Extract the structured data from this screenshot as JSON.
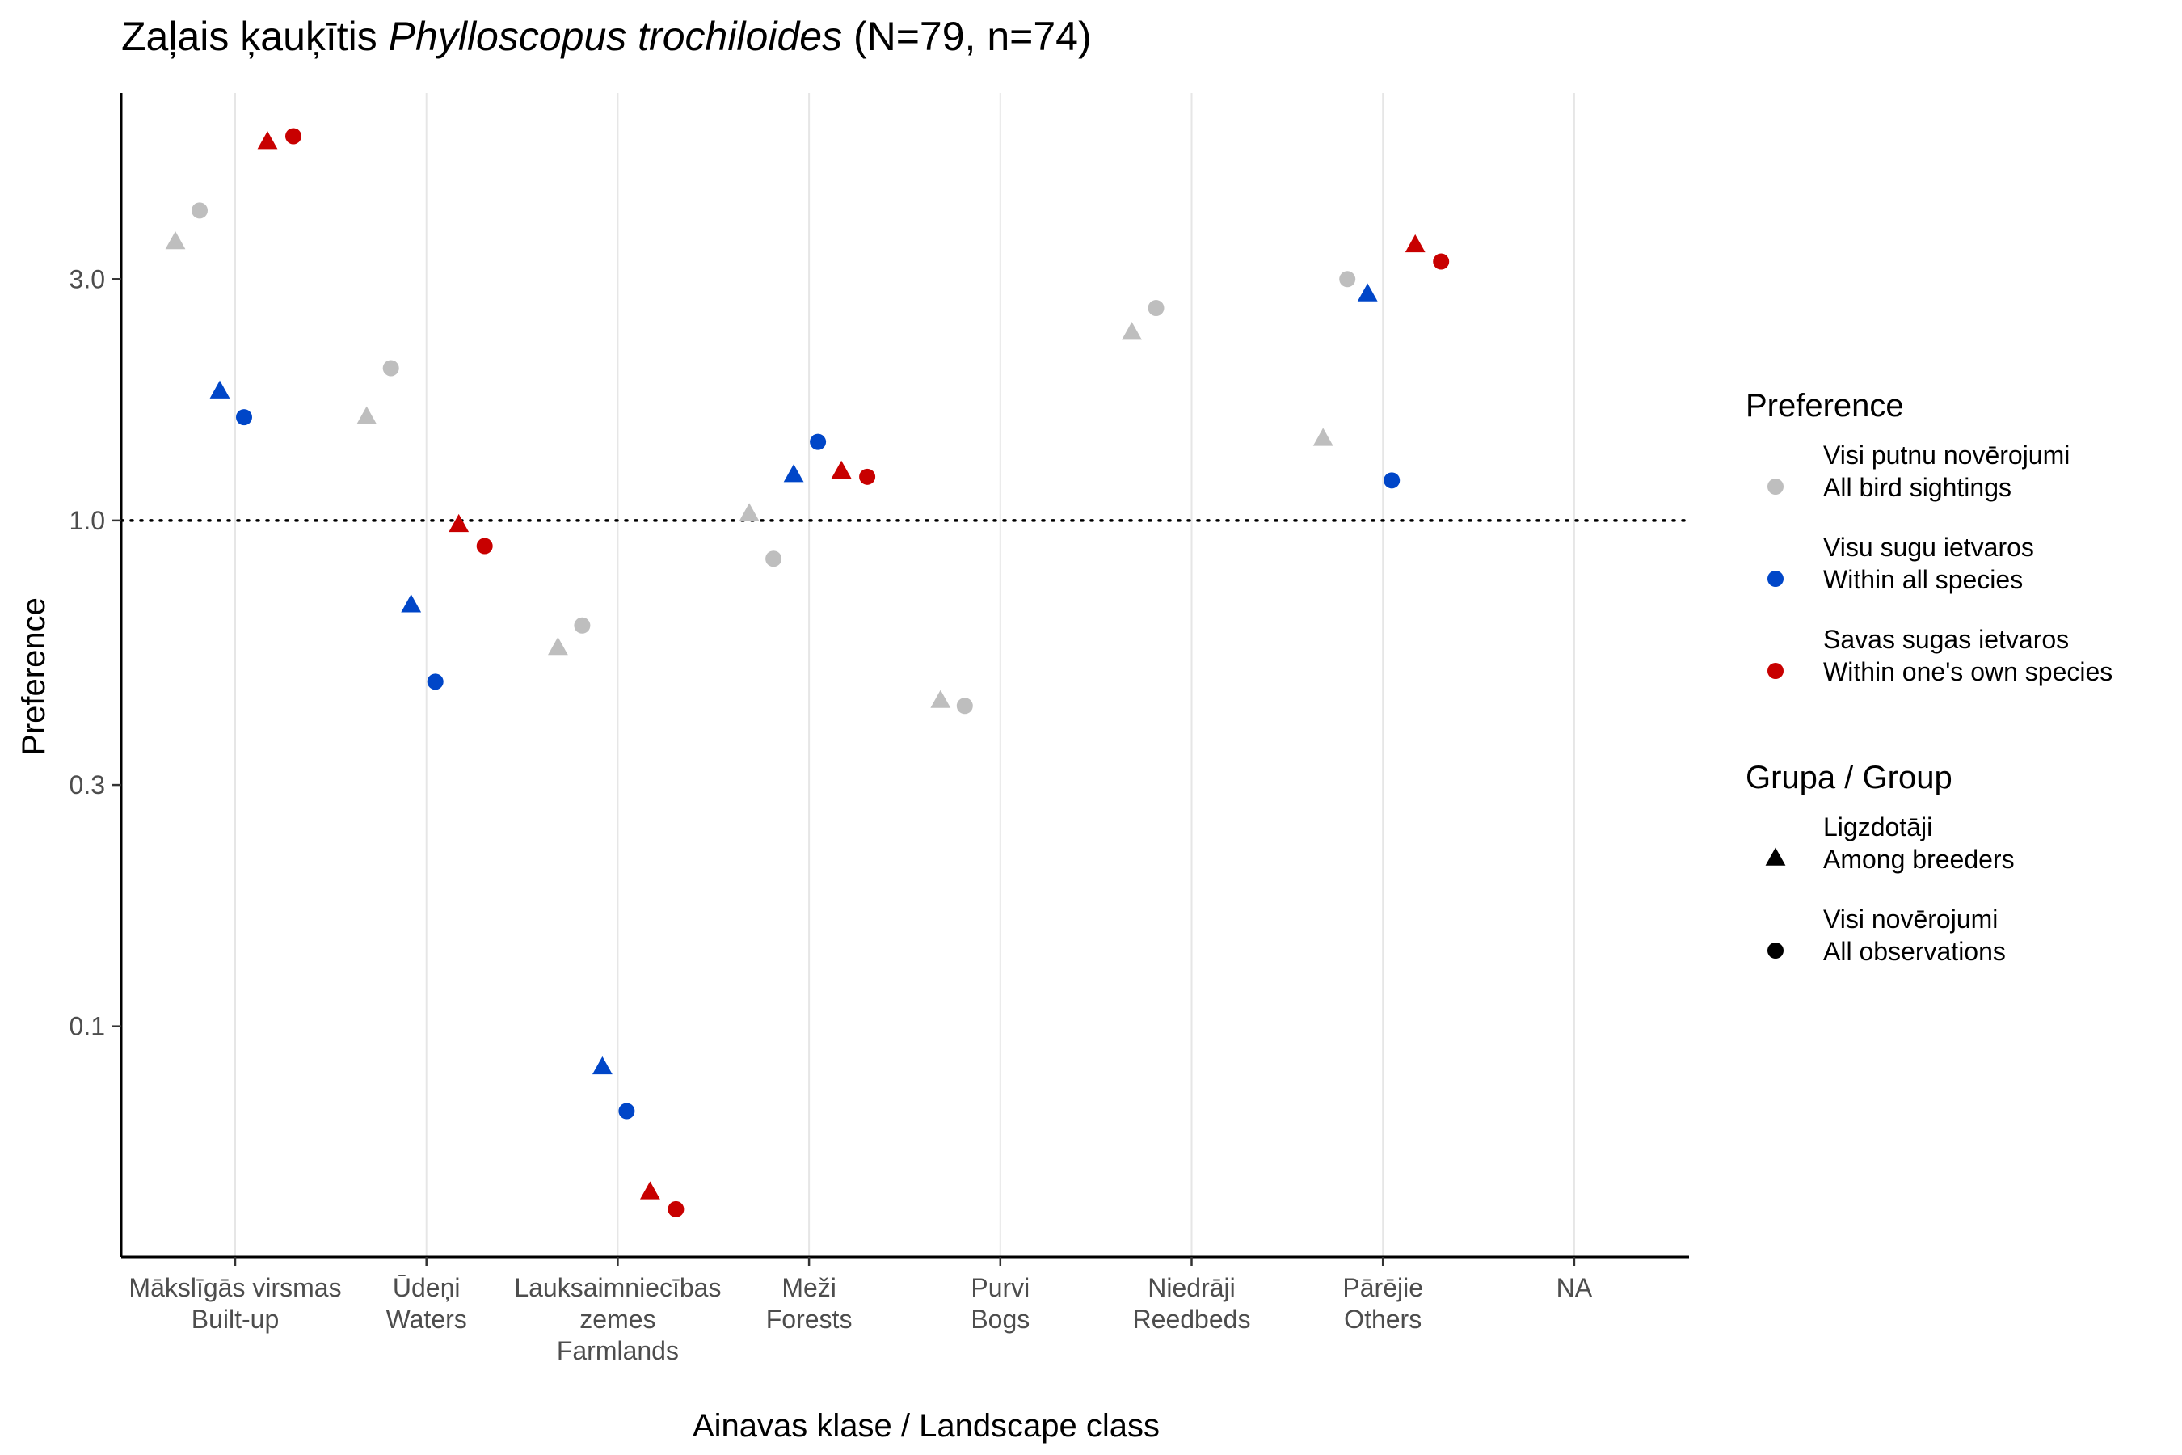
{
  "chart_data": {
    "type": "scatter",
    "title": {
      "prefix": "Zaļais ķauķītis ",
      "italic": "Phylloscopus trochiloides",
      "suffix": " (N=79, n=74)"
    },
    "xlabel": "Ainavas klase / Landscape class",
    "ylabel": "Preference",
    "y_scale": "log",
    "ylim": [
      0.035,
      7.0
    ],
    "y_ticks": [
      {
        "value": 0.1,
        "label": "0.1"
      },
      {
        "value": 0.3,
        "label": "0.3"
      },
      {
        "value": 1.0,
        "label": "1.0"
      },
      {
        "value": 3.0,
        "label": "3.0"
      }
    ],
    "reference_line": {
      "y": 1.0,
      "style": "dotted"
    },
    "grid": {
      "vertical": true,
      "horizontal": false
    },
    "categories": [
      [
        "Mākslīgās virsmas",
        "Built-up"
      ],
      [
        "Ūdeņi",
        "Waters"
      ],
      [
        "Lauksaimniecības",
        "zemes",
        "Farmlands"
      ],
      [
        "Meži",
        "Forests"
      ],
      [
        "Purvi",
        "Bogs"
      ],
      [
        "Niedrāji",
        "Reedbeds"
      ],
      [
        "Pārējie",
        "Others"
      ],
      [
        "NA"
      ]
    ],
    "series": [
      {
        "preference": 0,
        "group": 0,
        "values": [
          3.55,
          1.6,
          0.56,
          1.03,
          0.44,
          2.35,
          1.45,
          null
        ]
      },
      {
        "preference": 0,
        "group": 1,
        "values": [
          4.1,
          2.0,
          0.62,
          0.84,
          0.43,
          2.63,
          3.0,
          null
        ]
      },
      {
        "preference": 1,
        "group": 0,
        "values": [
          1.8,
          0.68,
          0.083,
          1.23,
          null,
          null,
          2.8,
          null
        ]
      },
      {
        "preference": 1,
        "group": 1,
        "values": [
          1.6,
          0.48,
          0.068,
          1.43,
          null,
          null,
          1.2,
          null
        ]
      },
      {
        "preference": 2,
        "group": 0,
        "values": [
          5.6,
          0.98,
          0.047,
          1.25,
          null,
          null,
          3.5,
          null
        ]
      },
      {
        "preference": 2,
        "group": 1,
        "values": [
          5.75,
          0.89,
          0.0435,
          1.22,
          null,
          null,
          3.25,
          null
        ]
      }
    ],
    "legend": {
      "placement": "right",
      "preference": {
        "title": "Preference",
        "entries": [
          {
            "line1": "Visi putnu novērojumi",
            "line2": "All bird sightings",
            "color": "#bebebe"
          },
          {
            "line1": "Visu sugu ietvaros",
            "line2": "Within all species",
            "color": "#0046c8"
          },
          {
            "line1": "Savas sugas ietvaros",
            "line2": "Within one's own species",
            "color": "#c80000"
          }
        ]
      },
      "group": {
        "title": "Grupa / Group",
        "entries": [
          {
            "line1": "Ligzdotāji",
            "line2": "Among breeders",
            "shape": "triangle"
          },
          {
            "line1": "Visi novērojumi",
            "line2": "All observations",
            "shape": "circle"
          }
        ]
      }
    }
  }
}
